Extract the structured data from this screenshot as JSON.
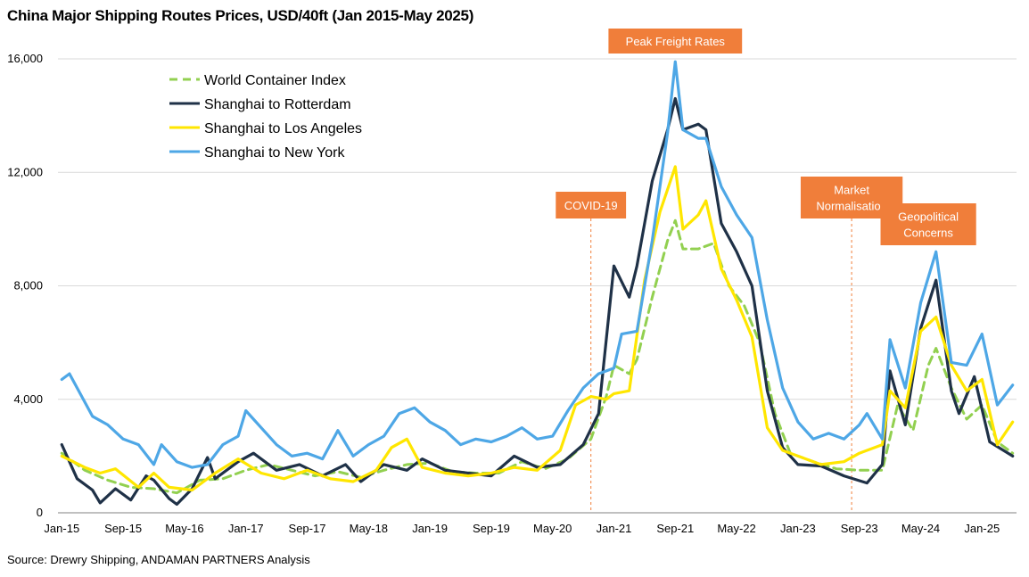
{
  "chart_data": {
    "type": "line",
    "title": "China Major Shipping Routes Prices, USD/40ft (Jan 2015-May 2025)",
    "source": "Source: Drewry Shipping, ANDAMAN PARTNERS Analysis",
    "xlabel": "",
    "ylabel": "",
    "ylim": [
      0,
      16000
    ],
    "yticks": [
      0,
      4000,
      8000,
      12000,
      16000
    ],
    "ytick_labels": [
      "0",
      "4,000",
      "8,000",
      "12,000",
      "16,000"
    ],
    "x_start": "Jan-15",
    "x_end": "May-25",
    "xtick_labels": [
      "Jan-15",
      "Sep-15",
      "May-16",
      "Jan-17",
      "Sep-17",
      "May-18",
      "Jan-19",
      "Sep-19",
      "May-20",
      "Jan-21",
      "Sep-21",
      "May-22",
      "Jan-23",
      "Sep-23",
      "May-24",
      "Jan-25"
    ],
    "grid": "horizontal",
    "legend_position": "top-left",
    "series": [
      {
        "name": "World Container Index",
        "color": "#92d050",
        "style": "dashed",
        "values": [
          {
            "x": "2015-01",
            "y": 2100
          },
          {
            "x": "2015-04",
            "y": 1500
          },
          {
            "x": "2015-07",
            "y": 1150
          },
          {
            "x": "2015-10",
            "y": 900
          },
          {
            "x": "2016-01",
            "y": 850
          },
          {
            "x": "2016-04",
            "y": 700
          },
          {
            "x": "2016-07",
            "y": 1150
          },
          {
            "x": "2016-10",
            "y": 1200
          },
          {
            "x": "2017-01",
            "y": 1500
          },
          {
            "x": "2017-04",
            "y": 1700
          },
          {
            "x": "2017-07",
            "y": 1500
          },
          {
            "x": "2017-10",
            "y": 1300
          },
          {
            "x": "2018-01",
            "y": 1450
          },
          {
            "x": "2018-04",
            "y": 1250
          },
          {
            "x": "2018-07",
            "y": 1500
          },
          {
            "x": "2018-10",
            "y": 1700
          },
          {
            "x": "2019-01",
            "y": 1750
          },
          {
            "x": "2019-04",
            "y": 1450
          },
          {
            "x": "2019-07",
            "y": 1400
          },
          {
            "x": "2019-10",
            "y": 1400
          },
          {
            "x": "2020-01",
            "y": 1800
          },
          {
            "x": "2020-04",
            "y": 1550
          },
          {
            "x": "2020-07",
            "y": 1900
          },
          {
            "x": "2020-10",
            "y": 2600
          },
          {
            "x": "2020-12",
            "y": 4100
          },
          {
            "x": "2021-01",
            "y": 5200
          },
          {
            "x": "2021-03",
            "y": 4900
          },
          {
            "x": "2021-04",
            "y": 5400
          },
          {
            "x": "2021-06",
            "y": 7600
          },
          {
            "x": "2021-08",
            "y": 9600
          },
          {
            "x": "2021-09",
            "y": 10300
          },
          {
            "x": "2021-10",
            "y": 9300
          },
          {
            "x": "2021-12",
            "y": 9300
          },
          {
            "x": "2022-02",
            "y": 9500
          },
          {
            "x": "2022-04",
            "y": 8000
          },
          {
            "x": "2022-06",
            "y": 7300
          },
          {
            "x": "2022-08",
            "y": 6000
          },
          {
            "x": "2022-10",
            "y": 3500
          },
          {
            "x": "2022-12",
            "y": 2100
          },
          {
            "x": "2023-03",
            "y": 1800
          },
          {
            "x": "2023-06",
            "y": 1550
          },
          {
            "x": "2023-09",
            "y": 1500
          },
          {
            "x": "2023-12",
            "y": 1500
          },
          {
            "x": "2024-02",
            "y": 3800
          },
          {
            "x": "2024-04",
            "y": 2900
          },
          {
            "x": "2024-06",
            "y": 5200
          },
          {
            "x": "2024-07",
            "y": 5800
          },
          {
            "x": "2024-09",
            "y": 4400
          },
          {
            "x": "2024-11",
            "y": 3300
          },
          {
            "x": "2025-01",
            "y": 3800
          },
          {
            "x": "2025-03",
            "y": 2500
          },
          {
            "x": "2025-05",
            "y": 2100
          }
        ]
      },
      {
        "name": "Shanghai to Rotterdam",
        "color": "#1f3147",
        "style": "solid",
        "values": [
          {
            "x": "2015-01",
            "y": 2400
          },
          {
            "x": "2015-03",
            "y": 1200
          },
          {
            "x": "2015-05",
            "y": 800
          },
          {
            "x": "2015-06",
            "y": 350
          },
          {
            "x": "2015-08",
            "y": 850
          },
          {
            "x": "2015-10",
            "y": 450
          },
          {
            "x": "2015-12",
            "y": 1300
          },
          {
            "x": "2016-01",
            "y": 1150
          },
          {
            "x": "2016-03",
            "y": 500
          },
          {
            "x": "2016-04",
            "y": 300
          },
          {
            "x": "2016-06",
            "y": 850
          },
          {
            "x": "2016-08",
            "y": 1950
          },
          {
            "x": "2016-09",
            "y": 1200
          },
          {
            "x": "2016-12",
            "y": 1800
          },
          {
            "x": "2017-02",
            "y": 2100
          },
          {
            "x": "2017-05",
            "y": 1500
          },
          {
            "x": "2017-08",
            "y": 1700
          },
          {
            "x": "2017-11",
            "y": 1300
          },
          {
            "x": "2018-02",
            "y": 1700
          },
          {
            "x": "2018-04",
            "y": 1100
          },
          {
            "x": "2018-07",
            "y": 1700
          },
          {
            "x": "2018-10",
            "y": 1500
          },
          {
            "x": "2018-12",
            "y": 1900
          },
          {
            "x": "2019-03",
            "y": 1500
          },
          {
            "x": "2019-06",
            "y": 1400
          },
          {
            "x": "2019-09",
            "y": 1300
          },
          {
            "x": "2019-12",
            "y": 2000
          },
          {
            "x": "2020-03",
            "y": 1600
          },
          {
            "x": "2020-06",
            "y": 1700
          },
          {
            "x": "2020-09",
            "y": 2400
          },
          {
            "x": "2020-11",
            "y": 3500
          },
          {
            "x": "2021-01",
            "y": 8700
          },
          {
            "x": "2021-03",
            "y": 7600
          },
          {
            "x": "2021-04",
            "y": 8700
          },
          {
            "x": "2021-06",
            "y": 11700
          },
          {
            "x": "2021-08",
            "y": 13500
          },
          {
            "x": "2021-09",
            "y": 14600
          },
          {
            "x": "2021-10",
            "y": 13500
          },
          {
            "x": "2021-12",
            "y": 13700
          },
          {
            "x": "2022-01",
            "y": 13500
          },
          {
            "x": "2022-03",
            "y": 10200
          },
          {
            "x": "2022-05",
            "y": 9200
          },
          {
            "x": "2022-07",
            "y": 8000
          },
          {
            "x": "2022-09",
            "y": 4300
          },
          {
            "x": "2022-11",
            "y": 2300
          },
          {
            "x": "2023-01",
            "y": 1700
          },
          {
            "x": "2023-04",
            "y": 1650
          },
          {
            "x": "2023-07",
            "y": 1300
          },
          {
            "x": "2023-10",
            "y": 1050
          },
          {
            "x": "2023-12",
            "y": 1700
          },
          {
            "x": "2024-01",
            "y": 5000
          },
          {
            "x": "2024-03",
            "y": 3100
          },
          {
            "x": "2024-05",
            "y": 6500
          },
          {
            "x": "2024-07",
            "y": 8200
          },
          {
            "x": "2024-09",
            "y": 4300
          },
          {
            "x": "2024-10",
            "y": 3500
          },
          {
            "x": "2024-12",
            "y": 4800
          },
          {
            "x": "2025-02",
            "y": 2500
          },
          {
            "x": "2025-05",
            "y": 2000
          }
        ]
      },
      {
        "name": "Shanghai to Los Angeles",
        "color": "#ffe600",
        "style": "solid",
        "values": [
          {
            "x": "2015-01",
            "y": 2000
          },
          {
            "x": "2015-04",
            "y": 1600
          },
          {
            "x": "2015-06",
            "y": 1400
          },
          {
            "x": "2015-08",
            "y": 1550
          },
          {
            "x": "2015-11",
            "y": 900
          },
          {
            "x": "2016-01",
            "y": 1400
          },
          {
            "x": "2016-03",
            "y": 900
          },
          {
            "x": "2016-06",
            "y": 800
          },
          {
            "x": "2016-09",
            "y": 1400
          },
          {
            "x": "2016-12",
            "y": 1900
          },
          {
            "x": "2017-03",
            "y": 1400
          },
          {
            "x": "2017-06",
            "y": 1200
          },
          {
            "x": "2017-09",
            "y": 1500
          },
          {
            "x": "2017-12",
            "y": 1200
          },
          {
            "x": "2018-03",
            "y": 1100
          },
          {
            "x": "2018-06",
            "y": 1500
          },
          {
            "x": "2018-08",
            "y": 2300
          },
          {
            "x": "2018-10",
            "y": 2600
          },
          {
            "x": "2018-12",
            "y": 1600
          },
          {
            "x": "2019-03",
            "y": 1400
          },
          {
            "x": "2019-06",
            "y": 1300
          },
          {
            "x": "2019-09",
            "y": 1400
          },
          {
            "x": "2019-12",
            "y": 1600
          },
          {
            "x": "2020-03",
            "y": 1500
          },
          {
            "x": "2020-06",
            "y": 2200
          },
          {
            "x": "2020-08",
            "y": 3800
          },
          {
            "x": "2020-10",
            "y": 4100
          },
          {
            "x": "2020-12",
            "y": 4000
          },
          {
            "x": "2021-01",
            "y": 4200
          },
          {
            "x": "2021-03",
            "y": 4300
          },
          {
            "x": "2021-05",
            "y": 8200
          },
          {
            "x": "2021-07",
            "y": 10600
          },
          {
            "x": "2021-09",
            "y": 12200
          },
          {
            "x": "2021-10",
            "y": 10000
          },
          {
            "x": "2021-12",
            "y": 10500
          },
          {
            "x": "2022-01",
            "y": 11000
          },
          {
            "x": "2022-03",
            "y": 8600
          },
          {
            "x": "2022-05",
            "y": 7500
          },
          {
            "x": "2022-07",
            "y": 6200
          },
          {
            "x": "2022-09",
            "y": 3000
          },
          {
            "x": "2022-11",
            "y": 2200
          },
          {
            "x": "2023-01",
            "y": 2000
          },
          {
            "x": "2023-04",
            "y": 1700
          },
          {
            "x": "2023-07",
            "y": 1800
          },
          {
            "x": "2023-09",
            "y": 2100
          },
          {
            "x": "2023-12",
            "y": 2400
          },
          {
            "x": "2024-01",
            "y": 4300
          },
          {
            "x": "2024-03",
            "y": 3700
          },
          {
            "x": "2024-05",
            "y": 6400
          },
          {
            "x": "2024-07",
            "y": 6900
          },
          {
            "x": "2024-09",
            "y": 5200
          },
          {
            "x": "2024-11",
            "y": 4300
          },
          {
            "x": "2025-01",
            "y": 4700
          },
          {
            "x": "2025-03",
            "y": 2400
          },
          {
            "x": "2025-05",
            "y": 3200
          }
        ]
      },
      {
        "name": "Shanghai to New York",
        "color": "#4ea7e6",
        "style": "solid",
        "values": [
          {
            "x": "2015-01",
            "y": 4700
          },
          {
            "x": "2015-02",
            "y": 4900
          },
          {
            "x": "2015-03",
            "y": 4400
          },
          {
            "x": "2015-05",
            "y": 3400
          },
          {
            "x": "2015-07",
            "y": 3100
          },
          {
            "x": "2015-09",
            "y": 2600
          },
          {
            "x": "2015-11",
            "y": 2400
          },
          {
            "x": "2016-01",
            "y": 1700
          },
          {
            "x": "2016-02",
            "y": 2400
          },
          {
            "x": "2016-04",
            "y": 1800
          },
          {
            "x": "2016-06",
            "y": 1600
          },
          {
            "x": "2016-08",
            "y": 1700
          },
          {
            "x": "2016-10",
            "y": 2400
          },
          {
            "x": "2016-12",
            "y": 2700
          },
          {
            "x": "2017-01",
            "y": 3600
          },
          {
            "x": "2017-03",
            "y": 3000
          },
          {
            "x": "2017-05",
            "y": 2400
          },
          {
            "x": "2017-07",
            "y": 2000
          },
          {
            "x": "2017-09",
            "y": 2100
          },
          {
            "x": "2017-11",
            "y": 1900
          },
          {
            "x": "2018-01",
            "y": 2900
          },
          {
            "x": "2018-03",
            "y": 2000
          },
          {
            "x": "2018-05",
            "y": 2400
          },
          {
            "x": "2018-07",
            "y": 2700
          },
          {
            "x": "2018-09",
            "y": 3500
          },
          {
            "x": "2018-11",
            "y": 3700
          },
          {
            "x": "2019-01",
            "y": 3200
          },
          {
            "x": "2019-03",
            "y": 2900
          },
          {
            "x": "2019-05",
            "y": 2400
          },
          {
            "x": "2019-07",
            "y": 2600
          },
          {
            "x": "2019-09",
            "y": 2500
          },
          {
            "x": "2019-11",
            "y": 2700
          },
          {
            "x": "2020-01",
            "y": 3000
          },
          {
            "x": "2020-03",
            "y": 2600
          },
          {
            "x": "2020-05",
            "y": 2700
          },
          {
            "x": "2020-07",
            "y": 3600
          },
          {
            "x": "2020-09",
            "y": 4400
          },
          {
            "x": "2020-11",
            "y": 4900
          },
          {
            "x": "2021-01",
            "y": 5100
          },
          {
            "x": "2021-02",
            "y": 6300
          },
          {
            "x": "2021-04",
            "y": 6400
          },
          {
            "x": "2021-06",
            "y": 9600
          },
          {
            "x": "2021-08",
            "y": 13400
          },
          {
            "x": "2021-09",
            "y": 15900
          },
          {
            "x": "2021-10",
            "y": 13500
          },
          {
            "x": "2021-12",
            "y": 13200
          },
          {
            "x": "2022-01",
            "y": 13200
          },
          {
            "x": "2022-03",
            "y": 11500
          },
          {
            "x": "2022-05",
            "y": 10500
          },
          {
            "x": "2022-07",
            "y": 9700
          },
          {
            "x": "2022-09",
            "y": 6800
          },
          {
            "x": "2022-11",
            "y": 4400
          },
          {
            "x": "2023-01",
            "y": 3200
          },
          {
            "x": "2023-03",
            "y": 2600
          },
          {
            "x": "2023-05",
            "y": 2800
          },
          {
            "x": "2023-07",
            "y": 2600
          },
          {
            "x": "2023-09",
            "y": 3100
          },
          {
            "x": "2023-10",
            "y": 3500
          },
          {
            "x": "2023-12",
            "y": 2600
          },
          {
            "x": "2024-01",
            "y": 6100
          },
          {
            "x": "2024-03",
            "y": 4400
          },
          {
            "x": "2024-05",
            "y": 7400
          },
          {
            "x": "2024-07",
            "y": 9200
          },
          {
            "x": "2024-09",
            "y": 5300
          },
          {
            "x": "2024-11",
            "y": 5200
          },
          {
            "x": "2025-01",
            "y": 6300
          },
          {
            "x": "2025-03",
            "y": 3800
          },
          {
            "x": "2025-05",
            "y": 4500
          }
        ]
      }
    ],
    "annotations": [
      {
        "text": "Peak Freight Rates",
        "x": "2021-09",
        "box_color": "#f07e3a",
        "line": false
      },
      {
        "text": "COVID-19",
        "x": "2020-10",
        "box_color": "#f07e3a",
        "line": true
      },
      {
        "text": "Market\nNormalisation",
        "x": "2023-08",
        "box_color": "#f07e3a",
        "line": true
      },
      {
        "text": "Geopolitical\nConcerns",
        "x": "2024-06",
        "box_color": "#f07e3a",
        "line": false
      }
    ]
  }
}
